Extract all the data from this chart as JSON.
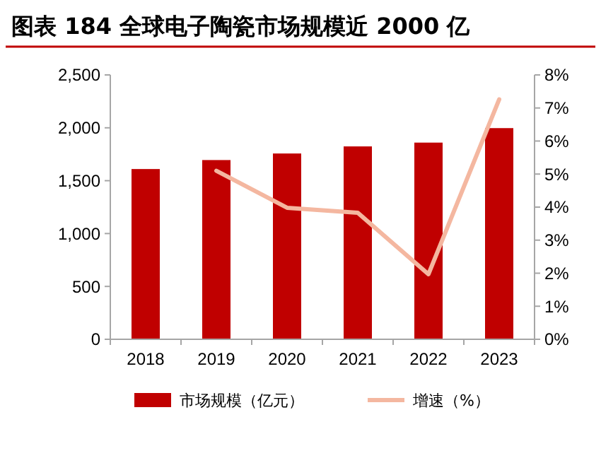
{
  "chart_data": {
    "type": "bar",
    "title": "图表 184 全球电子陶瓷市场规模近 2000 亿",
    "categories": [
      "2018",
      "2019",
      "2020",
      "2021",
      "2022",
      "2023"
    ],
    "series": [
      {
        "name": "市场规模（亿元）",
        "color": "#c00000",
        "values": [
          1610,
          1695,
          1757,
          1824,
          1860,
          1997
        ]
      },
      {
        "name": "增速（%）",
        "type": "line",
        "axis": "y2",
        "color": "#f4b7a0",
        "values": [
          null,
          5.1,
          3.98,
          3.83,
          1.97,
          7.26
        ]
      }
    ],
    "ylim": [
      0,
      2500
    ],
    "yticks": [
      0,
      {
        "value": 500,
        "label": "500"
      },
      {
        "value": 1000,
        "label": "1,000"
      },
      {
        "value": 1500,
        "label": "1,500"
      },
      {
        "value": 2000,
        "label": "2,000"
      },
      {
        "value": 2500,
        "label": "2,500"
      }
    ],
    "y2lim": [
      0,
      8
    ],
    "y2ticks": [
      {
        "value": 0,
        "label": "0%"
      },
      {
        "value": 1,
        "label": "1%"
      },
      {
        "value": 2,
        "label": "2%"
      },
      {
        "value": 3,
        "label": "3%"
      },
      {
        "value": 4,
        "label": "4%"
      },
      {
        "value": 5,
        "label": "5%"
      },
      {
        "value": 6,
        "label": "6%"
      },
      {
        "value": 7,
        "label": "7%"
      },
      {
        "value": 8,
        "label": "8%"
      }
    ],
    "grid": false,
    "legend": "bottom",
    "marker": "none",
    "line_style": "solid"
  }
}
